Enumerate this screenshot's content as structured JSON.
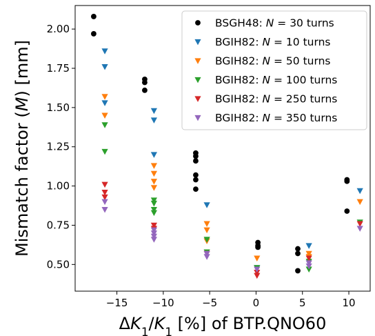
{
  "chart_data": {
    "type": "scatter",
    "xlabel_parts": [
      "Δ",
      "K",
      "1",
      "/",
      "K",
      "1",
      " [%] of BTP.QNO60"
    ],
    "ylabel_parts": [
      "Mismatch factor (",
      "M",
      ") [mm]"
    ],
    "xlim": [
      -19.5,
      12.3
    ],
    "ylim": [
      0.33,
      2.15
    ],
    "xticks": [
      -15,
      -10,
      -5,
      0,
      5,
      10
    ],
    "xtick_labels": [
      "−15",
      "−10",
      "−5",
      "0",
      "5",
      "10"
    ],
    "yticks": [
      0.5,
      0.75,
      1.0,
      1.25,
      1.5,
      1.75,
      2.0
    ],
    "ytick_labels": [
      "0.50",
      "0.75",
      "1.00",
      "1.25",
      "1.50",
      "1.75",
      "2.00"
    ],
    "grid": false,
    "legend_position": "top-right",
    "series": [
      {
        "name_parts": [
          "BSGH48: ",
          "N",
          " = 30 turns"
        ],
        "marker": "circle",
        "color": "#000000",
        "points": [
          [
            -17.5,
            2.08
          ],
          [
            -17.5,
            1.97
          ],
          [
            -12.0,
            1.68
          ],
          [
            -12.0,
            1.66
          ],
          [
            -12.0,
            1.61
          ],
          [
            -6.5,
            1.21
          ],
          [
            -6.5,
            1.19
          ],
          [
            -6.5,
            1.16
          ],
          [
            -6.5,
            1.07
          ],
          [
            -6.5,
            1.04
          ],
          [
            -6.5,
            0.98
          ],
          [
            0.2,
            0.64
          ],
          [
            0.2,
            0.62
          ],
          [
            0.2,
            0.61
          ],
          [
            4.5,
            0.6
          ],
          [
            4.5,
            0.57
          ],
          [
            4.5,
            0.46
          ],
          [
            9.8,
            1.04
          ],
          [
            9.8,
            1.03
          ],
          [
            9.8,
            0.84
          ]
        ]
      },
      {
        "name_parts": [
          "BGIH82: ",
          "N",
          " = 10 turns"
        ],
        "marker": "triangle-down",
        "color": "#1f77b4",
        "points": [
          [
            -16.3,
            1.86
          ],
          [
            -16.3,
            1.76
          ],
          [
            -16.3,
            1.53
          ],
          [
            -11.0,
            1.48
          ],
          [
            -11.0,
            1.42
          ],
          [
            -11.0,
            1.2
          ],
          [
            -5.3,
            0.88
          ],
          [
            0.1,
            0.48
          ],
          [
            5.7,
            0.62
          ],
          [
            11.2,
            0.97
          ]
        ]
      },
      {
        "name_parts": [
          "BGIH82: ",
          "N",
          " = 50 turns"
        ],
        "marker": "triangle-down",
        "color": "#ff7f0e",
        "points": [
          [
            -16.3,
            1.57
          ],
          [
            -16.3,
            1.45
          ],
          [
            -11.0,
            1.13
          ],
          [
            -11.0,
            1.08
          ],
          [
            -11.0,
            1.03
          ],
          [
            -11.0,
            0.99
          ],
          [
            -5.3,
            0.76
          ],
          [
            -5.3,
            0.72
          ],
          [
            -5.3,
            0.65
          ],
          [
            0.1,
            0.54
          ],
          [
            5.7,
            0.57
          ],
          [
            5.7,
            0.55
          ],
          [
            11.2,
            0.9
          ]
        ]
      },
      {
        "name_parts": [
          "BGIH82: ",
          "N",
          " = 100 turns"
        ],
        "marker": "triangle-down",
        "color": "#2ca02c",
        "points": [
          [
            -16.3,
            1.39
          ],
          [
            -16.3,
            1.22
          ],
          [
            -11.0,
            0.91
          ],
          [
            -11.0,
            0.89
          ],
          [
            -11.0,
            0.85
          ],
          [
            -11.0,
            0.83
          ],
          [
            -5.3,
            0.66
          ],
          [
            -5.3,
            0.58
          ],
          [
            0.1,
            0.48
          ],
          [
            5.7,
            0.52
          ],
          [
            5.7,
            0.47
          ],
          [
            11.2,
            0.77
          ]
        ]
      },
      {
        "name_parts": [
          "BGIH82: ",
          "N",
          " = 250 turns"
        ],
        "marker": "triangle-down",
        "color": "#d62728",
        "points": [
          [
            -16.3,
            1.01
          ],
          [
            -16.3,
            0.96
          ],
          [
            -16.3,
            0.93
          ],
          [
            -11.0,
            0.75
          ],
          [
            -11.0,
            0.73
          ],
          [
            -5.3,
            0.57
          ],
          [
            0.1,
            0.45
          ],
          [
            0.1,
            0.43
          ],
          [
            5.7,
            0.54
          ],
          [
            11.2,
            0.76
          ]
        ]
      },
      {
        "name_parts": [
          "BGIH82: ",
          "N",
          " = 350 turns"
        ],
        "marker": "triangle-down",
        "color": "#9467bd",
        "points": [
          [
            -16.3,
            0.9
          ],
          [
            -16.3,
            0.85
          ],
          [
            -11.0,
            0.72
          ],
          [
            -11.0,
            0.7
          ],
          [
            -11.0,
            0.68
          ],
          [
            -11.0,
            0.66
          ],
          [
            -5.3,
            0.57
          ],
          [
            -5.3,
            0.55
          ],
          [
            0.1,
            0.47
          ],
          [
            5.7,
            0.51
          ],
          [
            5.7,
            0.49
          ],
          [
            11.2,
            0.73
          ]
        ]
      }
    ]
  }
}
